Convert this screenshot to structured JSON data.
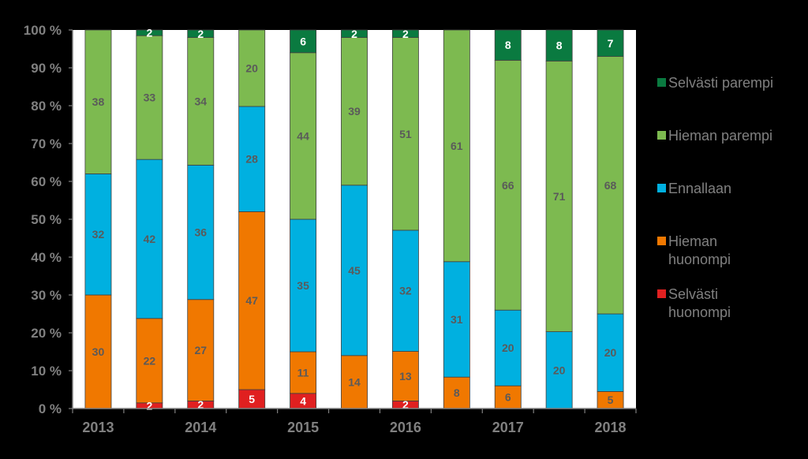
{
  "chart_data": {
    "type": "bar",
    "stacked": true,
    "categories": [
      "2013",
      "",
      "2014",
      "",
      "2015",
      "",
      "2016",
      "",
      "2017",
      "",
      "2018"
    ],
    "x_tick_labels": [
      "2013",
      "2014",
      "2015",
      "2016",
      "2017",
      "2018"
    ],
    "ylim": [
      0,
      100
    ],
    "y_ticks": [
      0,
      10,
      20,
      30,
      40,
      50,
      60,
      70,
      80,
      90,
      100
    ],
    "y_tick_labels": [
      "0 %",
      "10 %",
      "20 %",
      "30 %",
      "40 %",
      "50 %",
      "60 %",
      "70 %",
      "80 %",
      "90 %",
      "100 %"
    ],
    "grid": false,
    "legend_position": "right",
    "series": [
      {
        "name": "Selvästi huonompi",
        "color": "#E02020",
        "label_color": "#FFFFFF",
        "values": [
          0,
          1.5,
          2,
          5,
          4,
          0,
          2,
          0,
          0,
          0,
          0
        ],
        "labels": [
          "",
          "2",
          "2",
          "5",
          "4",
          "",
          "2",
          "",
          "",
          "",
          ""
        ]
      },
      {
        "name": "Hieman huonompi",
        "color": "#F07800",
        "label_color": "#5A5A5A",
        "values": [
          30,
          22.3,
          26.8,
          47,
          11,
          14,
          13.1,
          8.3,
          6,
          0,
          4.5
        ],
        "labels": [
          "30",
          "22",
          "27",
          "47",
          "11",
          "14",
          "13",
          "8",
          "6",
          "",
          "5"
        ]
      },
      {
        "name": "Ennallaan",
        "color": "#00B0E0",
        "label_color": "#5A5A5A",
        "values": [
          32,
          42,
          35.5,
          27.8,
          35,
          45,
          32,
          30.5,
          20,
          20.3,
          20.5
        ],
        "labels": [
          "32",
          "42",
          "36",
          "28",
          "35",
          "45",
          "32",
          "31",
          "20",
          "20",
          "20"
        ]
      },
      {
        "name": "Hieman parempi",
        "color": "#7DBA50",
        "label_color": "#5A5A5A",
        "values": [
          38,
          32.7,
          33.7,
          20.2,
          44,
          39,
          50.9,
          61.2,
          66,
          71.5,
          68
        ],
        "labels": [
          "38",
          "33",
          "34",
          "20",
          "44",
          "39",
          "51",
          "61",
          "66",
          "71",
          "68"
        ]
      },
      {
        "name": "Selvästi parempi",
        "color": "#0A7A40",
        "label_color": "#FFFFFF",
        "values": [
          0,
          1.5,
          2,
          0,
          6,
          2,
          2,
          0,
          8,
          8.2,
          7
        ],
        "labels": [
          "",
          "2",
          "2",
          "",
          "6",
          "2",
          "2",
          "",
          "8",
          "8",
          "7"
        ]
      }
    ],
    "legend": [
      {
        "lines": [
          "Selvästi parempi"
        ],
        "color": "#0A7A40"
      },
      {
        "lines": [
          "Hieman parempi"
        ],
        "color": "#7DBA50"
      },
      {
        "lines": [
          "Ennallaan"
        ],
        "color": "#00B0E0"
      },
      {
        "lines": [
          "Hieman",
          "huonompi"
        ],
        "color": "#F07800"
      },
      {
        "lines": [
          "Selvästi",
          "huonompi"
        ],
        "color": "#E02020"
      }
    ]
  }
}
